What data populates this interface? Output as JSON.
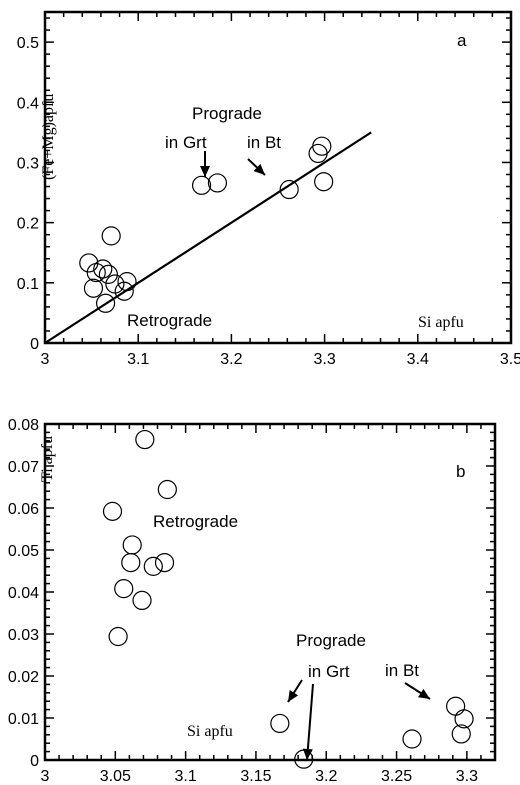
{
  "chart_data": [
    {
      "type": "scatter",
      "panel_label": "a",
      "xlabel": "Si apfu",
      "ylabel": "(Fe+Mg)apfu",
      "xlim": [
        3.0,
        3.5
      ],
      "ylim": [
        0,
        0.55
      ],
      "x_ticks": [
        3,
        3.1,
        3.2,
        3.3,
        3.4,
        3.5
      ],
      "y_ticks": [
        0,
        0.1,
        0.2,
        0.3,
        0.4,
        0.5
      ],
      "x_tick_labels": [
        "3",
        "3.1",
        "3.2",
        "3.3",
        "3.4",
        "3.5"
      ],
      "y_tick_labels": [
        "0",
        "0.1",
        "0.2",
        "0.3",
        "0.4",
        "0.5"
      ],
      "points": [
        {
          "x": 3.047,
          "y": 0.133
        },
        {
          "x": 3.052,
          "y": 0.091
        },
        {
          "x": 3.055,
          "y": 0.117
        },
        {
          "x": 3.062,
          "y": 0.123
        },
        {
          "x": 3.065,
          "y": 0.066
        },
        {
          "x": 3.068,
          "y": 0.114
        },
        {
          "x": 3.071,
          "y": 0.178
        },
        {
          "x": 3.075,
          "y": 0.098
        },
        {
          "x": 3.085,
          "y": 0.086
        },
        {
          "x": 3.088,
          "y": 0.102
        },
        {
          "x": 3.168,
          "y": 0.262
        },
        {
          "x": 3.185,
          "y": 0.266
        },
        {
          "x": 3.262,
          "y": 0.255
        },
        {
          "x": 3.293,
          "y": 0.315
        },
        {
          "x": 3.297,
          "y": 0.327
        },
        {
          "x": 3.299,
          "y": 0.268
        }
      ],
      "trend_line": {
        "x": [
          3.0,
          3.35
        ],
        "y": [
          0.0,
          0.35
        ]
      },
      "annotations": {
        "prograde": "Prograde",
        "in_grt": "in Grt",
        "in_bt": "in Bt",
        "retrograde": "Retrograde"
      }
    },
    {
      "type": "scatter",
      "panel_label": "b",
      "xlabel": "Si apfu",
      "ylabel": "Ti apfu",
      "xlim": [
        3.0,
        3.32
      ],
      "ylim": [
        0,
        0.08
      ],
      "x_ticks": [
        3,
        3.05,
        3.1,
        3.15,
        3.2,
        3.25,
        3.3
      ],
      "y_ticks": [
        0,
        0.01,
        0.02,
        0.03,
        0.04,
        0.05,
        0.06,
        0.07,
        0.08
      ],
      "x_tick_labels": [
        "3",
        "3.05",
        "3.1",
        "3.15",
        "3.2",
        "3.25",
        "3.3"
      ],
      "y_tick_labels": [
        "0",
        "0.01",
        "0.02",
        "0.03",
        "0.04",
        "0.05",
        "0.06",
        "0.07",
        "0.08"
      ],
      "points": [
        {
          "x": 3.048,
          "y": 0.0592
        },
        {
          "x": 3.052,
          "y": 0.0294
        },
        {
          "x": 3.056,
          "y": 0.0408
        },
        {
          "x": 3.061,
          "y": 0.047
        },
        {
          "x": 3.062,
          "y": 0.0512
        },
        {
          "x": 3.069,
          "y": 0.038
        },
        {
          "x": 3.071,
          "y": 0.0763
        },
        {
          "x": 3.077,
          "y": 0.0461
        },
        {
          "x": 3.085,
          "y": 0.047
        },
        {
          "x": 3.087,
          "y": 0.0644
        },
        {
          "x": 3.167,
          "y": 0.0087
        },
        {
          "x": 3.184,
          "y": 0.0002
        },
        {
          "x": 3.261,
          "y": 0.005
        },
        {
          "x": 3.292,
          "y": 0.0128
        },
        {
          "x": 3.296,
          "y": 0.0062
        },
        {
          "x": 3.298,
          "y": 0.0098
        }
      ],
      "annotations": {
        "prograde": "Prograde",
        "in_grt": "in Grt",
        "in_bt": "in Bt",
        "retrograde": "Retrograde"
      }
    }
  ]
}
